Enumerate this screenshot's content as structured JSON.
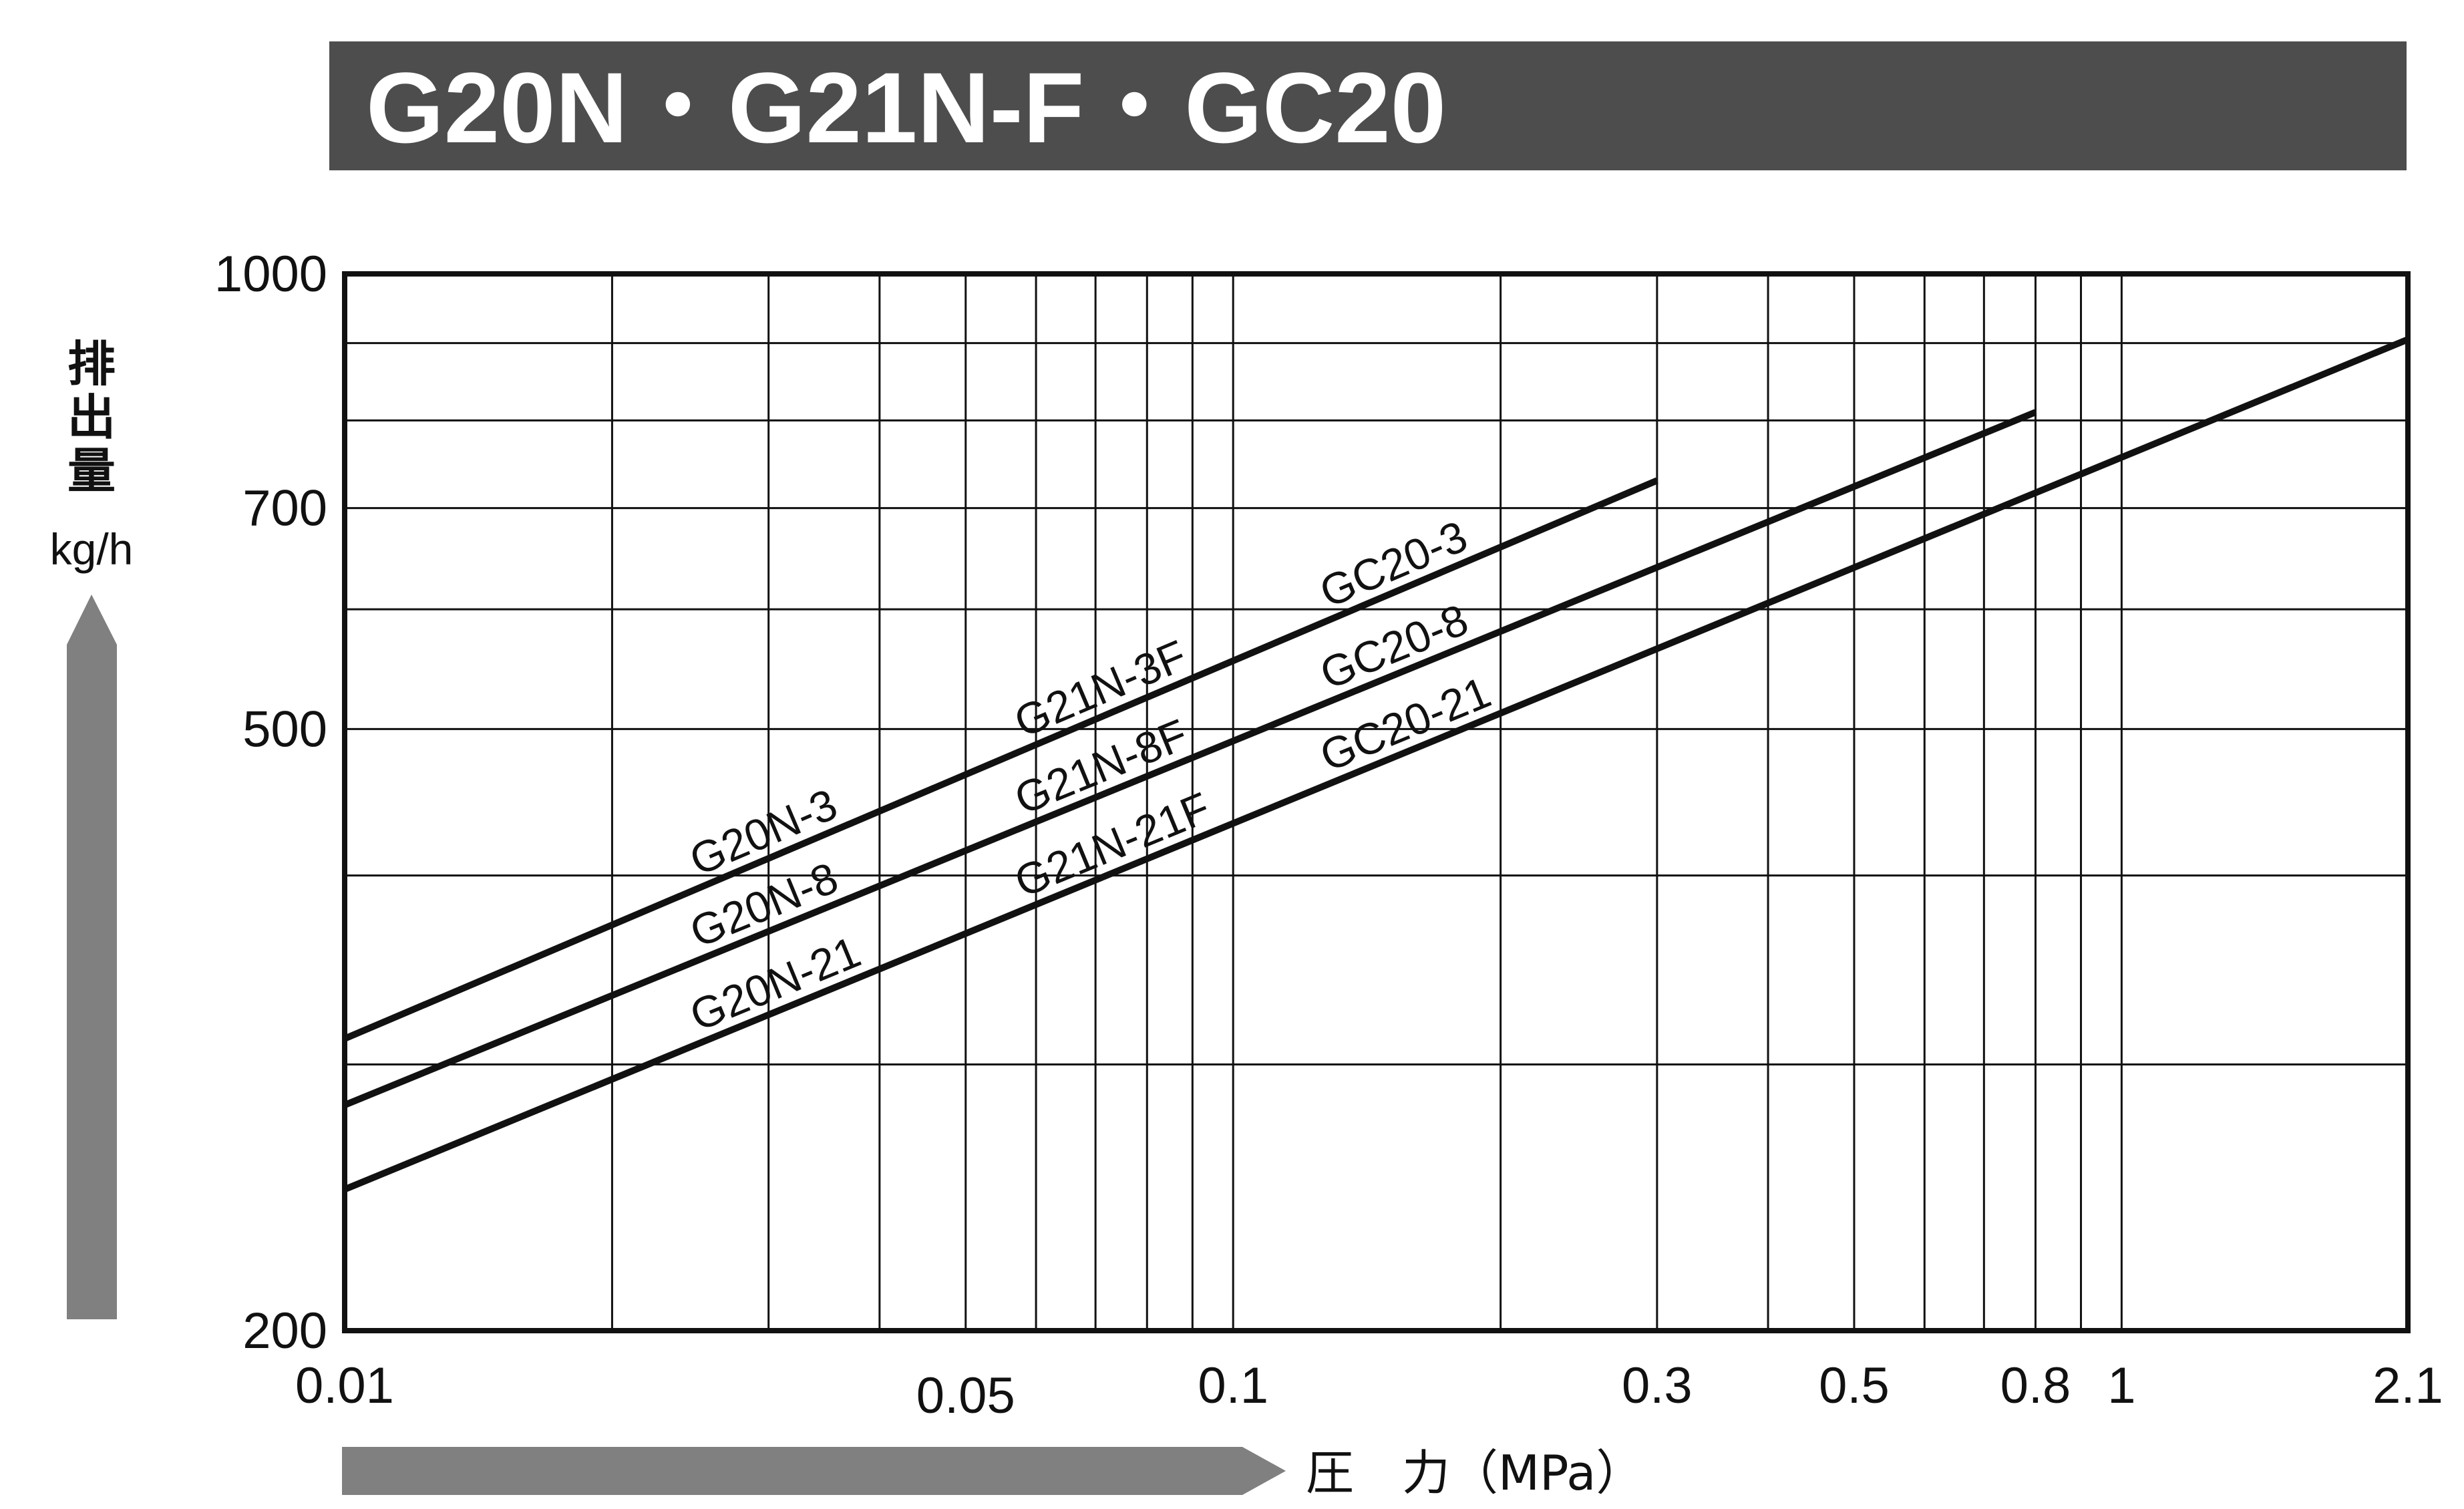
{
  "header": {
    "title": "G20N・G21N-F・GC20",
    "bar_color": "#4d4d4d",
    "text_color": "#ffffff"
  },
  "y_axis_label": {
    "line1": "排",
    "line2": "出",
    "line3": "量",
    "unit": "kg/h"
  },
  "x_axis_label": {
    "text": "圧　力（MPa）"
  },
  "arrow_color": "#808080",
  "chart_data": {
    "type": "line",
    "title": "G20N・G21N-F・GC20",
    "xlabel": "圧　力（MPa）",
    "ylabel": "排出量 kg/h",
    "x_scale": "log",
    "y_scale": "log",
    "xlim": [
      0.01,
      2.1
    ],
    "ylim": [
      200,
      1000
    ],
    "grid": true,
    "x_ticks": [
      "0.01",
      "0.05",
      "0.1",
      "0.3",
      "0.5",
      "0.8",
      "1",
      "2.1"
    ],
    "x_tick_values": [
      0.01,
      0.05,
      0.1,
      0.3,
      0.5,
      0.8,
      1,
      2.1
    ],
    "y_ticks": [
      "200",
      "500",
      "700",
      "1000"
    ],
    "y_tick_values": [
      200,
      500,
      700,
      1000
    ],
    "x_gridlines": [
      0.02,
      0.03,
      0.04,
      0.05,
      0.06,
      0.07,
      0.08,
      0.09,
      0.1,
      0.2,
      0.3,
      0.4,
      0.5,
      0.6,
      0.7,
      0.8,
      0.9,
      1
    ],
    "y_gridlines": [
      300,
      400,
      500,
      600,
      700,
      800,
      900
    ],
    "series": [
      {
        "labels": [
          "G20N-3",
          "G21N-3F",
          "GC20-3"
        ],
        "x": [
          0.01,
          0.3
        ],
        "y": [
          312,
          730
        ]
      },
      {
        "labels": [
          "G20N-8",
          "G21N-8F",
          "GC20-8"
        ],
        "x": [
          0.01,
          0.8
        ],
        "y": [
          282,
          810
        ]
      },
      {
        "labels": [
          "G20N-21",
          "G21N-21F",
          "GC20-21"
        ],
        "x": [
          0.01,
          2.1
        ],
        "y": [
          248,
          905
        ]
      }
    ]
  }
}
